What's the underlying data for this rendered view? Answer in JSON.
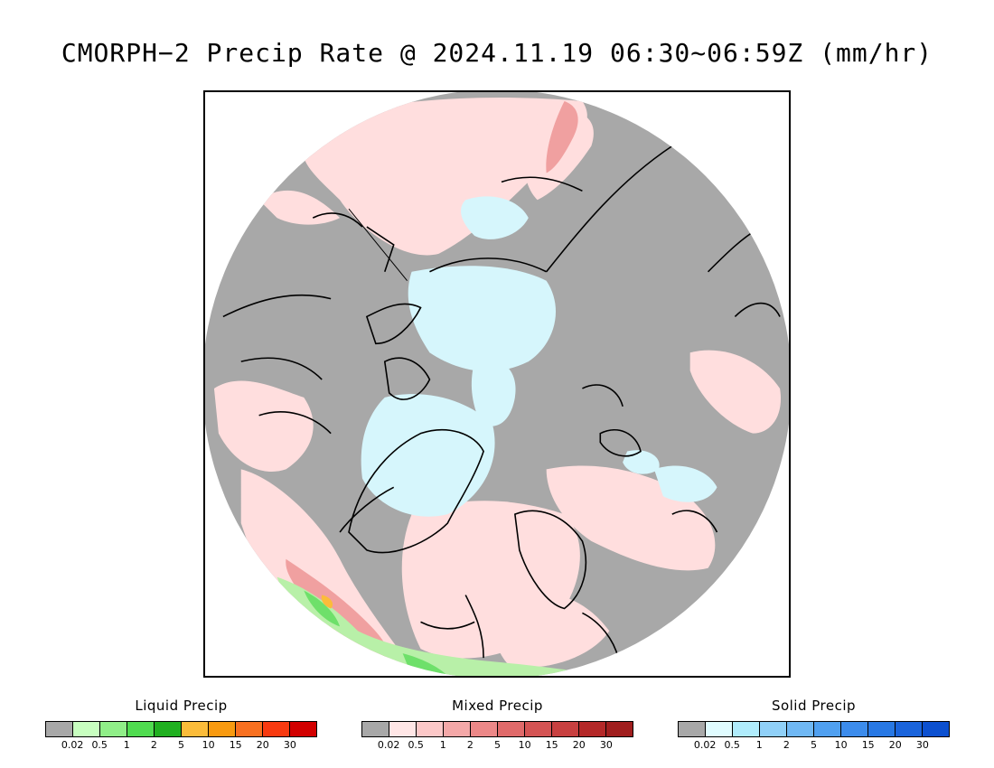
{
  "title": "CMORPH−2 Precip Rate @ 2024.11.19 06:30~06:59Z (mm/hr)",
  "map": {
    "projection": "north polar stereographic",
    "colors": {
      "background_no_precip": "#a8a8a8",
      "mixed_light": "#ffdede",
      "solid_light": "#d6f6fc",
      "liquid_light": "#b8f0a8",
      "liquid_mid": "#6ee06a",
      "mixed_mid": "#f0a0a0",
      "mixed_dark": "#dc7070",
      "liquid_orange": "#fbbc3a",
      "coastline": "#000000"
    }
  },
  "legends": [
    {
      "id": "liquid",
      "title": "Liquid Precip",
      "colors": [
        "#a8a8a8",
        "#c8ffc0",
        "#90ee88",
        "#50dc50",
        "#20b020",
        "#fbbc3a",
        "#f89a10",
        "#f87020",
        "#f83a10",
        "#d20000"
      ],
      "ticks": [
        "0.02",
        "0.5",
        "1",
        "2",
        "5",
        "10",
        "15",
        "20",
        "30"
      ]
    },
    {
      "id": "mixed",
      "title": "Mixed Precip",
      "colors": [
        "#a8a8a8",
        "#ffe6e6",
        "#fcc8c8",
        "#f4a8a8",
        "#ec8888",
        "#e06a6a",
        "#d45454",
        "#c84040",
        "#b42828",
        "#a01e1e"
      ],
      "ticks": [
        "0.02",
        "0.5",
        "1",
        "2",
        "5",
        "10",
        "15",
        "20",
        "30"
      ]
    },
    {
      "id": "solid",
      "title": "Solid Precip",
      "colors": [
        "#a8a8a8",
        "#e0fcff",
        "#b0ecfc",
        "#90d0f8",
        "#70b8f4",
        "#50a0f0",
        "#3c8cec",
        "#2878e4",
        "#1a64dc",
        "#0c50d0"
      ],
      "ticks": [
        "0.02",
        "0.5",
        "1",
        "2",
        "5",
        "10",
        "15",
        "20",
        "30"
      ]
    }
  ]
}
